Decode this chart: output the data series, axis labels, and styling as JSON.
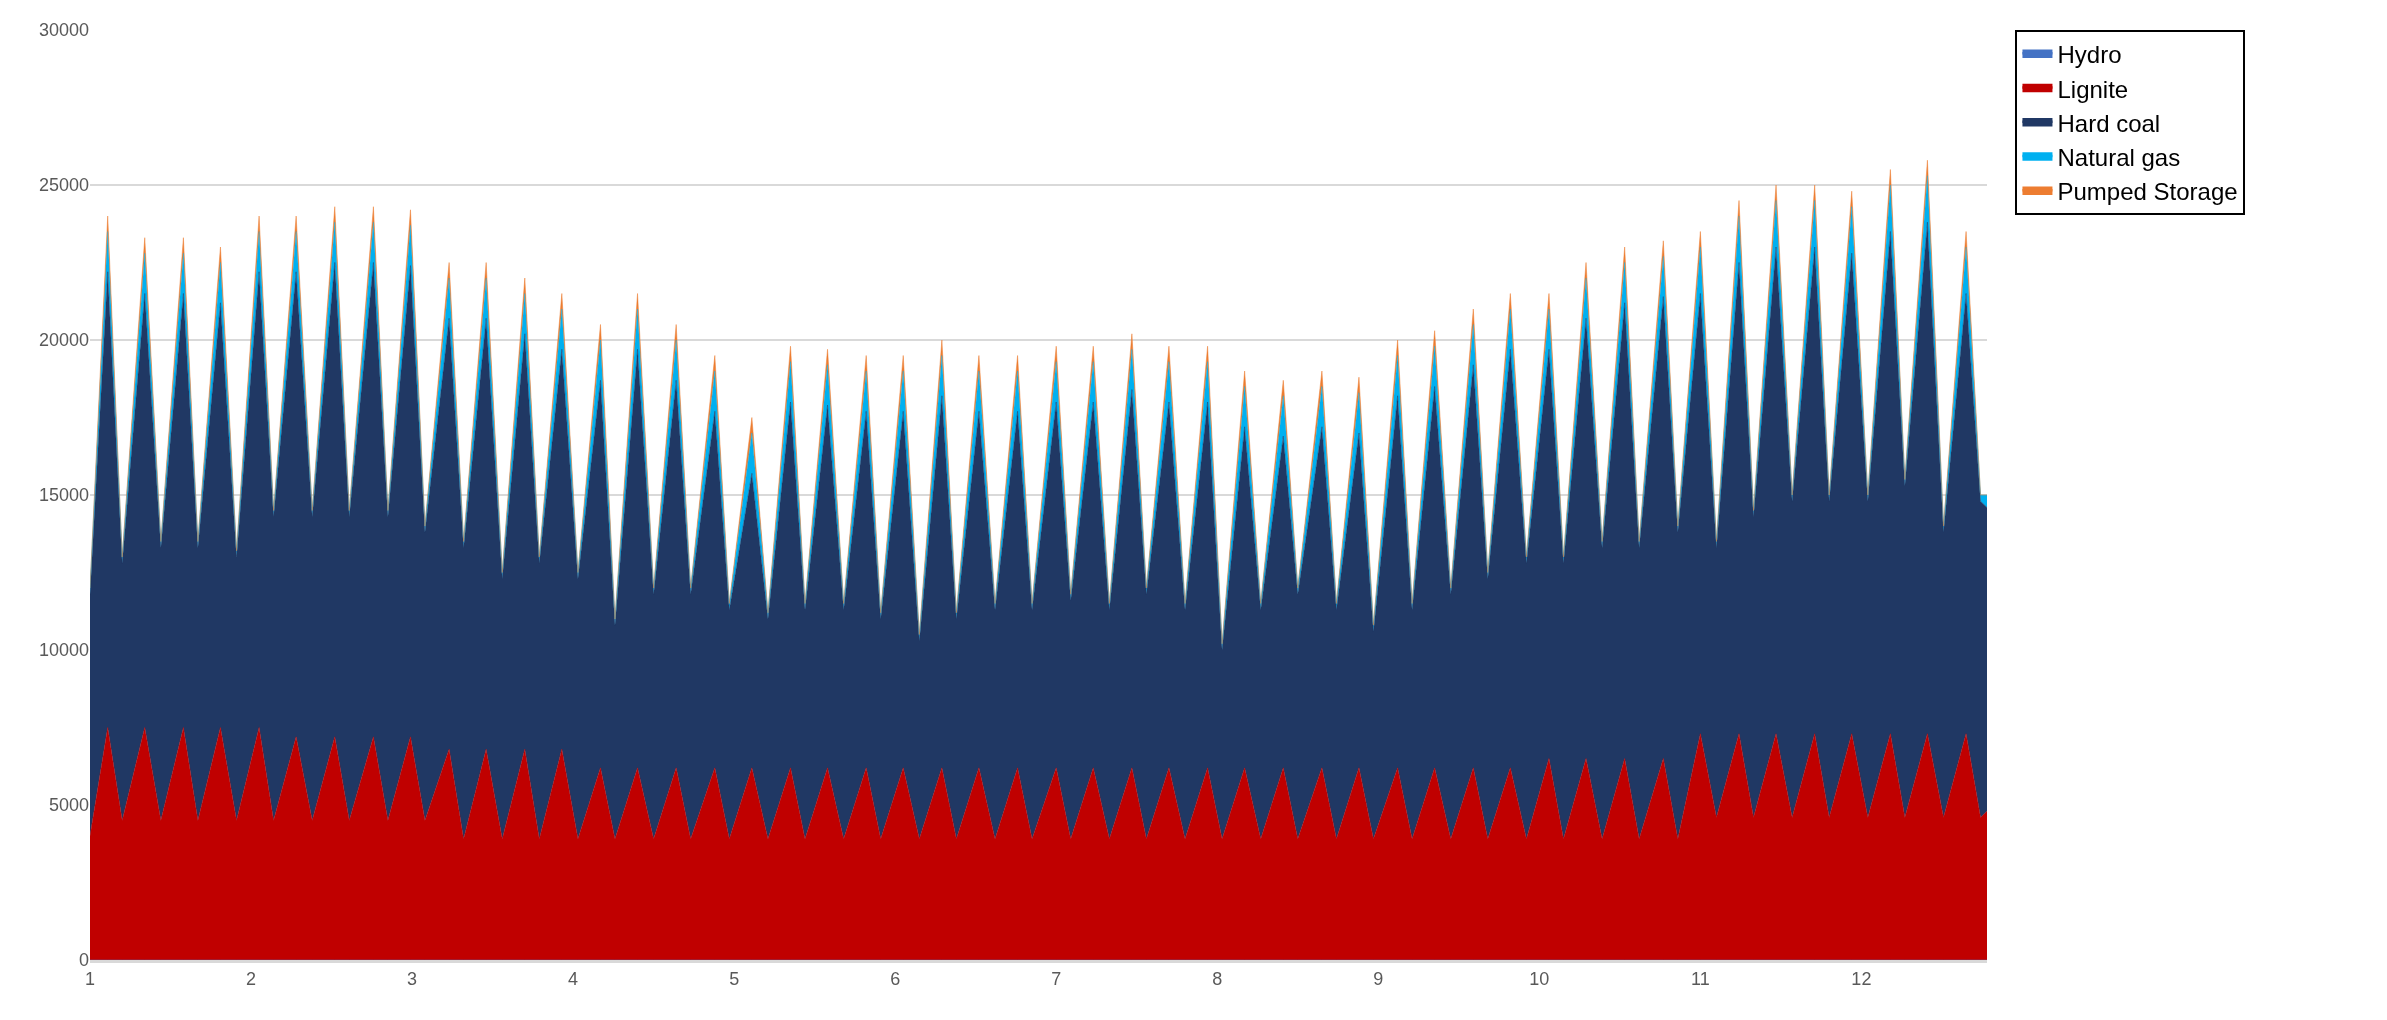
{
  "chart_data": {
    "type": "area",
    "stacked": true,
    "x": [
      1,
      1.11,
      1.2,
      1.34,
      1.44,
      1.58,
      1.67,
      1.81,
      1.91,
      2.05,
      2.14,
      2.28,
      2.38,
      2.52,
      2.61,
      2.76,
      2.85,
      2.99,
      3.08,
      3.23,
      3.32,
      3.46,
      3.56,
      3.7,
      3.79,
      3.93,
      4.03,
      4.17,
      4.26,
      4.4,
      4.5,
      4.64,
      4.73,
      4.88,
      4.97,
      5.11,
      5.21,
      5.35,
      5.44,
      5.58,
      5.68,
      5.82,
      5.91,
      6.05,
      6.15,
      6.29,
      6.38,
      6.52,
      6.62,
      6.76,
      6.85,
      7,
      7.09,
      7.23,
      7.33,
      7.47,
      7.56,
      7.7,
      7.8,
      7.94,
      8.03,
      8.17,
      8.27,
      8.41,
      8.5,
      8.65,
      8.74,
      8.88,
      8.97,
      9.12,
      9.21,
      9.35,
      9.45,
      9.59,
      9.68,
      9.82,
      9.92,
      10.06,
      10.15,
      10.29,
      10.39,
      10.53,
      10.62,
      10.77,
      10.86,
      11,
      11.1,
      11.24,
      11.33,
      11.47,
      11.57,
      11.71,
      11.8,
      11.94,
      12.04,
      12.18,
      12.27,
      12.41,
      12.51,
      12.65,
      12.74,
      12.78
    ],
    "series": [
      {
        "name": "Hydro",
        "color": "#4472c4",
        "values": [
          null,
          null,
          null,
          null,
          null,
          null,
          null,
          null,
          null,
          null,
          null,
          null,
          null,
          null,
          null,
          null,
          null,
          null,
          null,
          null,
          null,
          null,
          null,
          null,
          null,
          null,
          null,
          null,
          null,
          null,
          null,
          null,
          null,
          null,
          null,
          null,
          null,
          null,
          null,
          null,
          null,
          null,
          null,
          null,
          null,
          null,
          null,
          null,
          null,
          null,
          null,
          null,
          null,
          null,
          null,
          null,
          null,
          null,
          null,
          null,
          null,
          null,
          null,
          null,
          null,
          null,
          null,
          null,
          null,
          null,
          null,
          null,
          null,
          null,
          null,
          null,
          null,
          null,
          null,
          null,
          null,
          null,
          null,
          null,
          null,
          null,
          null,
          null,
          null,
          null,
          null,
          null,
          null,
          null,
          null,
          null,
          null,
          null,
          null,
          null,
          null,
          null
        ]
      },
      {
        "name": "Lignite",
        "color": "#c00000",
        "values": [
          4000,
          7500,
          4500,
          7500,
          4500,
          7500,
          4500,
          7500,
          4500,
          7500,
          4500,
          7200,
          4500,
          7200,
          4500,
          7200,
          4500,
          7200,
          4500,
          6800,
          3900,
          6800,
          3900,
          6800,
          3900,
          6800,
          3900,
          6200,
          3900,
          6200,
          3900,
          6200,
          3900,
          6200,
          3900,
          6200,
          3900,
          6200,
          3900,
          6200,
          3900,
          6200,
          3900,
          6200,
          3900,
          6200,
          3900,
          6200,
          3900,
          6200,
          3900,
          6200,
          3900,
          6200,
          3900,
          6200,
          3900,
          6200,
          3900,
          6200,
          3900,
          6200,
          3900,
          6200,
          3900,
          6200,
          3900,
          6200,
          3900,
          6200,
          3900,
          6200,
          3900,
          6200,
          3900,
          6200,
          3900,
          6500,
          3900,
          6500,
          3900,
          6500,
          3900,
          6500,
          3900,
          7300,
          4600,
          7300,
          4600,
          7300,
          4600,
          7300,
          4600,
          7300,
          4600,
          7300,
          4600,
          7300,
          4600,
          7300,
          4600,
          4800
        ]
      },
      {
        "name": "Hard coal",
        "color": "#203864",
        "values": [
          7800,
          14700,
          8300,
          14000,
          8800,
          14000,
          8800,
          13700,
          8500,
          14700,
          9800,
          15000,
          9800,
          15300,
          9800,
          15300,
          9800,
          15200,
          9300,
          13900,
          9400,
          13900,
          8400,
          13400,
          8900,
          12900,
          8400,
          12500,
          6900,
          13500,
          7900,
          12500,
          7900,
          11500,
          7400,
          9500,
          7100,
          11800,
          7400,
          11700,
          7400,
          11500,
          7100,
          11500,
          6400,
          12000,
          7100,
          11500,
          7400,
          11500,
          7400,
          11800,
          7700,
          11800,
          7400,
          12200,
          7900,
          11800,
          7400,
          11800,
          6100,
          11000,
          7400,
          10700,
          7900,
          11000,
          7400,
          10800,
          6700,
          12000,
          7400,
          12300,
          7900,
          13000,
          8400,
          13500,
          8900,
          13200,
          8900,
          14200,
          9400,
          14700,
          9400,
          14900,
          9900,
          14200,
          8700,
          15200,
          9700,
          15700,
          10200,
          15700,
          10200,
          15500,
          10200,
          16200,
          10700,
          16500,
          9200,
          14200,
          10200,
          9800
        ]
      },
      {
        "name": "Natural gas",
        "color": "#00b0f0",
        "values": [
          200,
          1300,
          200,
          1300,
          200,
          1300,
          200,
          1300,
          200,
          1300,
          200,
          1300,
          200,
          1300,
          200,
          1300,
          200,
          1300,
          200,
          1300,
          200,
          1300,
          200,
          1300,
          200,
          1300,
          200,
          1300,
          200,
          1300,
          200,
          1300,
          200,
          1300,
          200,
          1300,
          200,
          1300,
          200,
          1300,
          200,
          1300,
          200,
          1300,
          200,
          1300,
          200,
          1300,
          200,
          1300,
          200,
          1300,
          200,
          1300,
          200,
          1300,
          200,
          1300,
          200,
          1300,
          200,
          1300,
          200,
          1300,
          200,
          1300,
          200,
          1300,
          200,
          1300,
          200,
          1300,
          200,
          1300,
          200,
          1300,
          200,
          1300,
          200,
          1300,
          200,
          1300,
          200,
          1300,
          200,
          1500,
          200,
          1500,
          200,
          1500,
          200,
          1500,
          200,
          1500,
          200,
          1500,
          200,
          1500,
          200,
          1500,
          200,
          400
        ]
      },
      {
        "name": "Pumped Storage",
        "color": "#ed7d31",
        "values": [
          0,
          500,
          0,
          500,
          0,
          500,
          0,
          500,
          0,
          500,
          0,
          500,
          0,
          500,
          0,
          500,
          0,
          500,
          0,
          500,
          0,
          500,
          0,
          500,
          0,
          500,
          0,
          500,
          0,
          500,
          0,
          500,
          0,
          500,
          0,
          500,
          0,
          500,
          0,
          500,
          0,
          500,
          0,
          500,
          0,
          500,
          0,
          500,
          0,
          500,
          0,
          500,
          0,
          500,
          0,
          500,
          0,
          500,
          0,
          500,
          0,
          500,
          0,
          500,
          0,
          500,
          0,
          500,
          0,
          500,
          0,
          500,
          0,
          500,
          0,
          500,
          0,
          500,
          0,
          500,
          0,
          500,
          0,
          500,
          0,
          500,
          0,
          500,
          0,
          500,
          0,
          500,
          0,
          500,
          0,
          500,
          0,
          500,
          0,
          500,
          0,
          0
        ]
      }
    ],
    "xlim": [
      1,
      12.78
    ],
    "xticks": [
      1,
      2,
      3,
      4,
      5,
      6,
      7,
      8,
      9,
      10,
      11,
      12
    ],
    "ylim": [
      0,
      30000
    ],
    "yticks": [
      0,
      5000,
      10000,
      15000,
      20000,
      25000,
      30000
    ],
    "grid": "y",
    "legend": "top right"
  }
}
